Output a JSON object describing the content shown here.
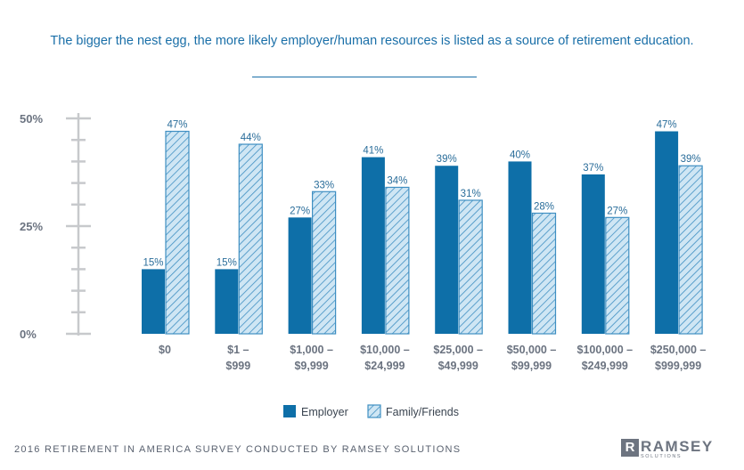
{
  "title": "The bigger the nest egg, the more likely employer/human resources is listed as a source of retirement education.",
  "footer": {
    "source": "2016 RETIREMENT IN AMERICA SURVEY CONDUCTED BY RAMSEY SOLUTIONS",
    "logo_text": "RAMSEY",
    "logo_subtext": "SOLUTIONS",
    "logo_mark": "R"
  },
  "colors": {
    "employer": "#0e6fa8",
    "family": "#cfe6f4",
    "family_hatch": "#3f8fc2",
    "title": "#1a6fa8",
    "axis": "#c7c9cc",
    "tick_label": "#6b7380",
    "data_label": "#2a6d9a"
  },
  "chart_data": {
    "type": "bar",
    "title": "The bigger the nest egg, the more likely employer/human resources is listed as a source of retirement education.",
    "categories": [
      [
        "$0"
      ],
      [
        "$1 –",
        "$999"
      ],
      [
        "$1,000 –",
        "$9,999"
      ],
      [
        "$10,000 –",
        "$24,999"
      ],
      [
        "$25,000 –",
        "$49,999"
      ],
      [
        "$50,000 –",
        "$99,999"
      ],
      [
        "$100,000 –",
        "$249,999"
      ],
      [
        "$250,000 –",
        "$999,999"
      ]
    ],
    "series": [
      {
        "name": "Employer",
        "values": [
          15,
          15,
          27,
          41,
          39,
          40,
          37,
          47
        ],
        "style": "solid"
      },
      {
        "name": "Family/Friends",
        "values": [
          47,
          44,
          33,
          34,
          31,
          28,
          27,
          39
        ],
        "style": "hatched"
      }
    ],
    "yticks": [
      "0%",
      "25%",
      "50%"
    ],
    "ytick_values": [
      0,
      25,
      50
    ],
    "ylim": [
      0,
      50
    ],
    "xlabel": "",
    "ylabel": "",
    "grid": false,
    "legend": "bottom-center"
  }
}
